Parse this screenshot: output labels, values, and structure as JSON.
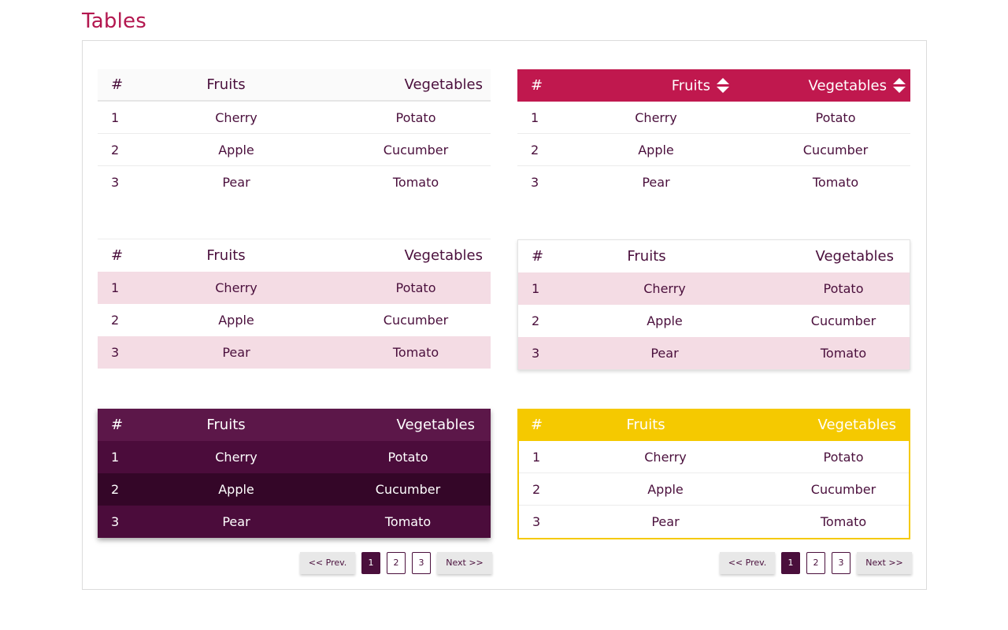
{
  "page": {
    "title": "Tables"
  },
  "table": {
    "headers": {
      "num": "#",
      "fruits": "Fruits",
      "vegetables": "Vegetables"
    },
    "rows": [
      {
        "num": "1",
        "fruit": "Cherry",
        "vegetable": "Potato"
      },
      {
        "num": "2",
        "fruit": "Apple",
        "vegetable": "Cucumber"
      },
      {
        "num": "3",
        "fruit": "Pear",
        "vegetable": "Tomato"
      }
    ]
  },
  "pagination": {
    "prev_label": "<< Prev.",
    "next_label": "Next >>",
    "pages": [
      "1",
      "2",
      "3"
    ],
    "active_page": "1"
  },
  "colors": {
    "title": "#b3174f",
    "crimson_header": "#c0184e",
    "stripe_pink": "#f4dce4",
    "dark_purple": "#4b0c3b",
    "gold": "#f5c900"
  },
  "icons": {
    "sort": "sort-icon"
  }
}
